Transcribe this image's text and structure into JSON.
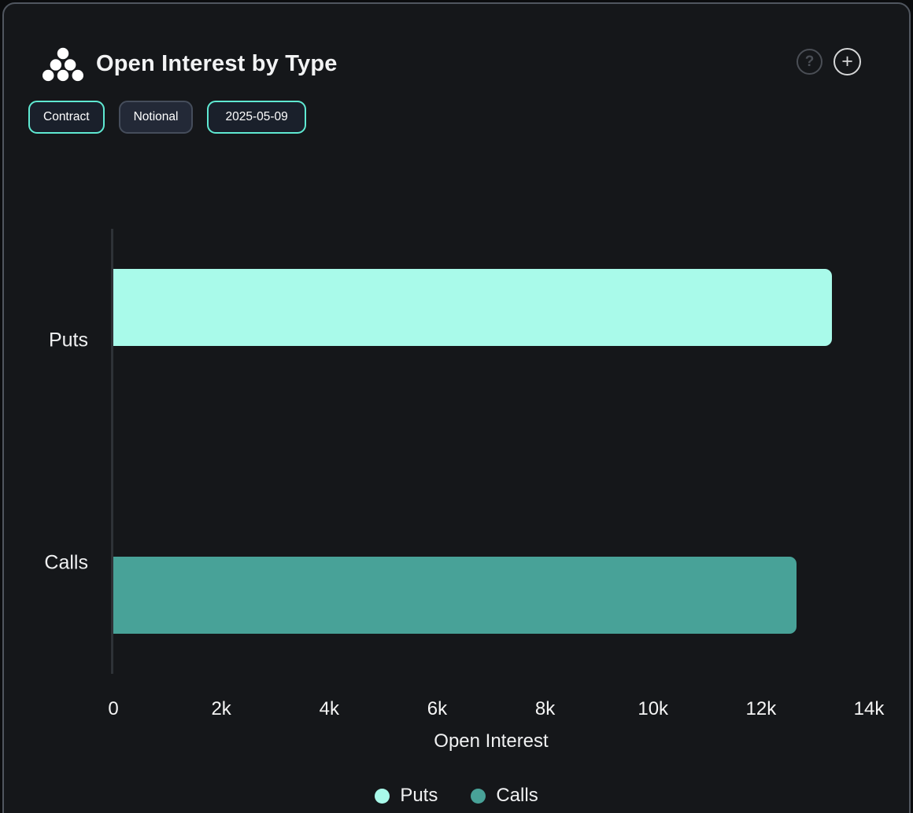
{
  "header": {
    "title": "Open Interest by Type",
    "help_label": "?",
    "add_label": "+"
  },
  "toolbar": {
    "buttons": [
      {
        "label": "Contract",
        "active": true
      },
      {
        "label": "Notional",
        "active": false
      },
      {
        "label": "2025-05-09",
        "active": true
      }
    ]
  },
  "chart_data": {
    "type": "bar",
    "orientation": "horizontal",
    "title": "Open Interest by Type",
    "categories": [
      "Puts",
      "Calls"
    ],
    "values": [
      13310,
      12655
    ],
    "series_colors": [
      "#A9FAEA",
      "#48A298"
    ],
    "xlabel": "Open Interest",
    "xlim": [
      0,
      14000
    ],
    "xticks": [
      {
        "label": "0",
        "value": 0
      },
      {
        "label": "2k",
        "value": 2000
      },
      {
        "label": "4k",
        "value": 4000
      },
      {
        "label": "6k",
        "value": 6000
      },
      {
        "label": "8k",
        "value": 8000
      },
      {
        "label": "10k",
        "value": 10000
      },
      {
        "label": "12k",
        "value": 12000
      },
      {
        "label": "14k",
        "value": 14000
      }
    ],
    "legend": [
      {
        "label": "Puts",
        "color": "#A9FAEA"
      },
      {
        "label": "Calls",
        "color": "#48A298"
      }
    ],
    "grid": false,
    "legend_position": "bottom"
  },
  "colors": {
    "background": "#15171A",
    "card_border": "#50565F",
    "accent_teal": "#5FE9D2",
    "axis_line": "#2E3237",
    "text": "#F2F3F4"
  }
}
